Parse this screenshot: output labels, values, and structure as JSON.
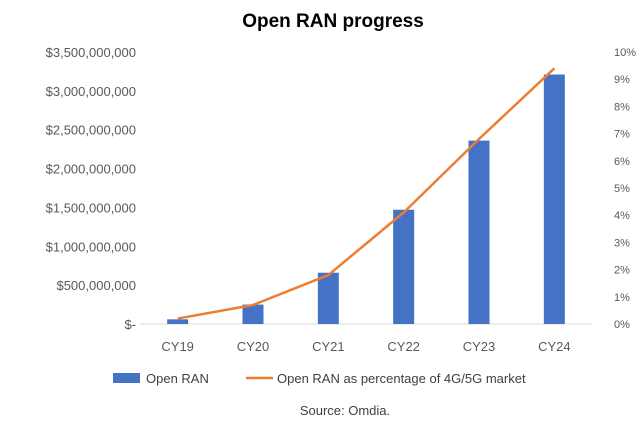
{
  "chart_data": {
    "type": "bar",
    "title": "Open RAN progress",
    "categories": [
      "CY19",
      "CY20",
      "CY21",
      "CY22",
      "CY23",
      "CY24"
    ],
    "series": [
      {
        "name": "Open RAN",
        "type": "bar",
        "axis": "left",
        "color": "#4472C4",
        "values": [
          60000000,
          250000000,
          660000000,
          1470000000,
          2360000000,
          3210000000
        ]
      },
      {
        "name": "Open RAN as percentage of 4G/5G market",
        "type": "line",
        "axis": "right",
        "color": "#ED7D31",
        "values": [
          0.2,
          0.7,
          1.8,
          4.1,
          6.8,
          9.4
        ]
      }
    ],
    "y_left": {
      "ylim": [
        0,
        3500000000
      ],
      "ticks": [
        {
          "value": 0,
          "label": "$-"
        },
        {
          "value": 500000000,
          "label": "$500,000,000"
        },
        {
          "value": 1000000000,
          "label": "$1,000,000,000"
        },
        {
          "value": 1500000000,
          "label": "$1,500,000,000"
        },
        {
          "value": 2000000000,
          "label": "$2,000,000,000"
        },
        {
          "value": 2500000000,
          "label": "$2,500,000,000"
        },
        {
          "value": 3000000000,
          "label": "$3,000,000,000"
        },
        {
          "value": 3500000000,
          "label": "$3,500,000,000"
        }
      ]
    },
    "y_right": {
      "ylim": [
        0,
        10
      ],
      "ticks": [
        {
          "value": 0,
          "label": "0%"
        },
        {
          "value": 1,
          "label": "1%"
        },
        {
          "value": 2,
          "label": "2%"
        },
        {
          "value": 3,
          "label": "3%"
        },
        {
          "value": 4,
          "label": "4%"
        },
        {
          "value": 5,
          "label": "5%"
        },
        {
          "value": 6,
          "label": "6%"
        },
        {
          "value": 7,
          "label": "7%"
        },
        {
          "value": 8,
          "label": "8%"
        },
        {
          "value": 9,
          "label": "9%"
        },
        {
          "value": 10,
          "label": "10%"
        }
      ]
    },
    "grid": false,
    "legend_position": "bottom",
    "source": "Source: Omdia."
  }
}
